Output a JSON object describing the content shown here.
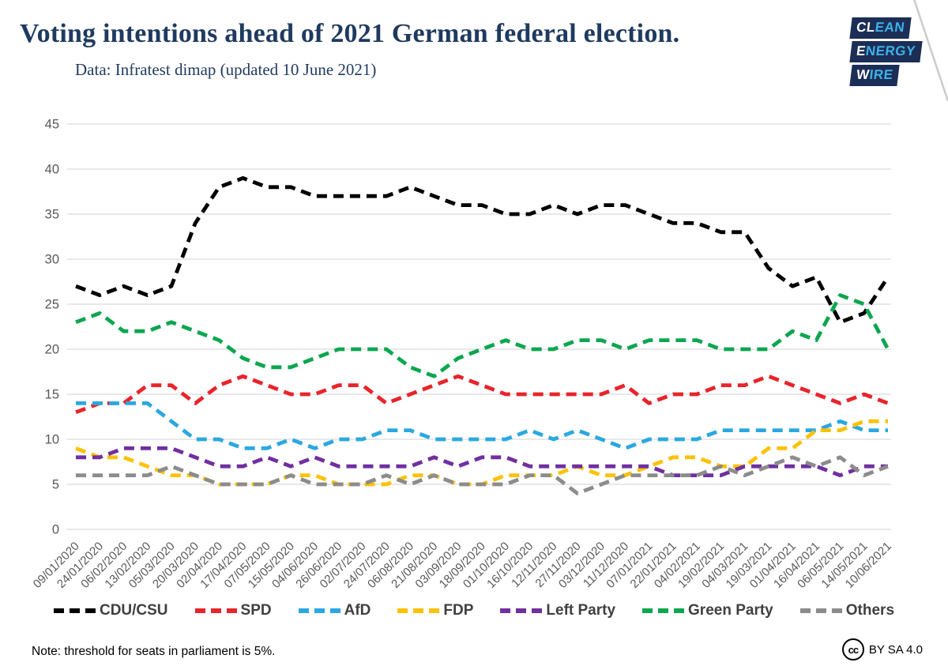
{
  "header": {
    "title": "Voting intentions ahead of 2021 German federal election.",
    "subtitle": "Data: Infratest dimap (updated 10 June 2021)",
    "logo_lines": [
      {
        "lead": "CL",
        "rest": "EAN"
      },
      {
        "lead": "E",
        "rest": "NERGY"
      },
      {
        "lead": "W",
        "rest": "IRE"
      }
    ]
  },
  "chart_data": {
    "type": "line",
    "title": "Voting intentions ahead of 2021 German federal election.",
    "subtitle": "Data: Infratest dimap (updated 10 June 2021)",
    "line_style": "dashed",
    "grid": true,
    "legend_position": "bottom",
    "ylim": [
      0,
      45
    ],
    "ytick_step": 5,
    "x_labels": [
      "09/01/2020",
      "24/01/2020",
      "06/02/2020",
      "13/02/2020",
      "05/03/2020",
      "20/03/2020",
      "02/04/2020",
      "17/04/2020",
      "07/05/2020",
      "15/05/2020",
      "04/06/2020",
      "26/06/2020",
      "02/07/2020",
      "24/07/2020",
      "06/08/2020",
      "21/08/2020",
      "03/09/2020",
      "18/09/2020",
      "01/10/2020",
      "16/10/2020",
      "12/11/2020",
      "27/11/2020",
      "03/12/2020",
      "11/12/2020",
      "07/01/2021",
      "22/01/2021",
      "04/02/2021",
      "19/02/2021",
      "04/03/2021",
      "19/03/2021",
      "01/04/2021",
      "16/04/2021",
      "06/05/2021",
      "14/05/2021",
      "10/06/2021"
    ],
    "series": [
      {
        "name": "CDU/CSU",
        "color": "#000000",
        "values": [
          27,
          26,
          27,
          26,
          27,
          34,
          38,
          39,
          38,
          38,
          37,
          37,
          37,
          37,
          38,
          37,
          36,
          36,
          35,
          35,
          36,
          35,
          36,
          36,
          35,
          34,
          34,
          33,
          33,
          29,
          27,
          28,
          23,
          24,
          28
        ]
      },
      {
        "name": "SPD",
        "color": "#e8242b",
        "values": [
          13,
          14,
          14,
          16,
          16,
          14,
          16,
          17,
          16,
          15,
          15,
          16,
          16,
          14,
          15,
          16,
          17,
          16,
          15,
          15,
          15,
          15,
          15,
          16,
          14,
          15,
          15,
          16,
          16,
          17,
          16,
          15,
          14,
          15,
          14
        ]
      },
      {
        "name": "AfD",
        "color": "#2ba8e0",
        "values": [
          14,
          14,
          14,
          14,
          12,
          10,
          10,
          9,
          9,
          10,
          9,
          10,
          10,
          11,
          11,
          10,
          10,
          10,
          10,
          11,
          10,
          11,
          10,
          9,
          10,
          10,
          10,
          11,
          11,
          11,
          11,
          11,
          12,
          11,
          11
        ]
      },
      {
        "name": "FDP",
        "color": "#fcc204",
        "values": [
          9,
          8,
          8,
          7,
          6,
          6,
          5,
          5,
          5,
          6,
          6,
          5,
          5,
          5,
          6,
          6,
          5,
          5,
          6,
          6,
          6,
          7,
          6,
          6,
          7,
          8,
          8,
          7,
          7,
          9,
          9,
          11,
          11,
          12,
          12
        ]
      },
      {
        "name": "Left Party",
        "color": "#7030a0",
        "values": [
          8,
          8,
          9,
          9,
          9,
          8,
          7,
          7,
          8,
          7,
          8,
          7,
          7,
          7,
          7,
          8,
          7,
          8,
          8,
          7,
          7,
          7,
          7,
          7,
          7,
          6,
          6,
          6,
          7,
          7,
          7,
          7,
          6,
          7,
          7
        ]
      },
      {
        "name": "Green Party",
        "color": "#0ca64f",
        "values": [
          23,
          24,
          22,
          22,
          23,
          22,
          21,
          19,
          18,
          18,
          19,
          20,
          20,
          20,
          18,
          17,
          19,
          20,
          21,
          20,
          20,
          21,
          21,
          20,
          21,
          21,
          21,
          20,
          20,
          20,
          22,
          21,
          26,
          25,
          20
        ]
      },
      {
        "name": "Others",
        "color": "#8c8c8c",
        "values": [
          6,
          6,
          6,
          6,
          7,
          6,
          5,
          5,
          5,
          6,
          5,
          5,
          5,
          6,
          5,
          6,
          5,
          5,
          5,
          6,
          6,
          4,
          5,
          6,
          6,
          6,
          6,
          7,
          6,
          7,
          8,
          7,
          8,
          6,
          7
        ]
      }
    ]
  },
  "footer": {
    "note": "Note: threshold for seats in parliament is 5%.",
    "cc_glyph": "cc",
    "license": "BY SA 4.0"
  }
}
